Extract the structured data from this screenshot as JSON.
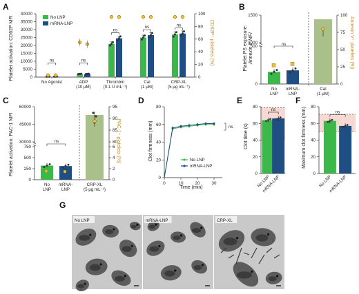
{
  "colors": {
    "green": "#3cb84a",
    "blue": "#1f4e82",
    "sage": "#a9c08a",
    "yellow": "#f0c030",
    "orange": "#c8902a",
    "pink": "#f6d9d2"
  },
  "panels": {
    "A": {
      "label": "A",
      "legend": [
        "No LNP",
        "mRNA-LNP"
      ],
      "ylabel": "Platelet activation: CD62P MFI",
      "y2label": "CD62P⁺ platelets (%)",
      "yticks": [
        "0",
        "5000",
        "10000",
        "15000",
        "20000",
        "25000",
        "30000",
        "35000",
        "40000"
      ],
      "y2ticks": [
        "0",
        "20",
        "40",
        "60",
        "80",
        "100"
      ],
      "groups": [
        "No Agonist",
        "ADP",
        "Thrombin",
        "Cal",
        "CRP-XL"
      ],
      "groups2": [
        "",
        "(10 μM)",
        "(0.1 U mL⁻¹)",
        "(1 μM)",
        "(5 μg mL⁻¹)"
      ],
      "sig": [
        "ns",
        "ns",
        "ns",
        "ns",
        "ns"
      ]
    },
    "B": {
      "label": "B",
      "ylabel1": "Platelet PS exposure:",
      "ylabel2": "Annexin V MFI",
      "y2label": "Annexin V⁺ platelets (%)",
      "yticks": [
        "0",
        "500",
        "1000",
        "1500"
      ],
      "y2ticks": [
        "0",
        "25",
        "50",
        "75",
        "100"
      ],
      "cats": [
        "No",
        "mRNA-",
        "Cal"
      ],
      "cats2": [
        "LNP",
        "LNP",
        "(1 μM)"
      ],
      "sig": "ns"
    },
    "C": {
      "label": "C",
      "ylabel": "Platelet activation: PAC-1 MFI",
      "y2label": "PAC-1⁺ platelets (%)",
      "yticks": [
        "0",
        "250",
        "500",
        "750",
        "30000",
        "45000",
        "60000"
      ],
      "y2ticks": [
        "0",
        "2",
        "4",
        "6",
        "80",
        "85",
        "90",
        "95"
      ],
      "cats": [
        "No",
        "mRNA-",
        "CRP-XL"
      ],
      "cats2": [
        "LNP",
        "LNP",
        "(5 μg mL⁻¹)"
      ],
      "sig": "ns"
    },
    "D": {
      "label": "D",
      "ylabel": "Clot firmness (mm)",
      "xlabel": "Time (min)",
      "yticks": [
        "0",
        "20",
        "40",
        "60",
        "80"
      ],
      "xticks": [
        "0",
        "10",
        "20",
        "30"
      ],
      "legend": [
        "No LNP",
        "mRNA-LNP"
      ],
      "sig": "ns"
    },
    "E": {
      "label": "E",
      "ylabel": "Clot time (s)",
      "yticks": [
        "0",
        "20",
        "40",
        "60",
        "80"
      ],
      "cats": [
        "No LNP",
        "mRNA-LNP"
      ],
      "sig": "ns"
    },
    "F": {
      "label": "F",
      "ylabel": "Maximum clot firmness (mm)",
      "yticks": [
        "0",
        "20",
        "40",
        "60",
        "80"
      ],
      "cats": [
        "No LNP",
        "mRNA-LNP"
      ],
      "sig": "ns"
    },
    "G": {
      "label": "G",
      "images": [
        "No LNP",
        "mRNA-LNP",
        "CRP-XL"
      ]
    }
  },
  "chart_data": [
    {
      "panel": "A",
      "type": "bar",
      "categories": [
        "No Agonist",
        "ADP (10 μM)",
        "Thrombin (0.1 U mL⁻¹)",
        "Cal (1 μM)",
        "CRP-XL (5 μg mL⁻¹)"
      ],
      "series": [
        {
          "name": "No LNP",
          "values": [
            300,
            2000,
            21000,
            25000,
            27000
          ]
        },
        {
          "name": "mRNA-LNP",
          "values": [
            300,
            2000,
            24500,
            26500,
            27500
          ]
        }
      ],
      "y2_percent_points": {
        "No LNP": [
          3,
          55,
          95,
          95,
          95
        ],
        "mRNA-LNP": [
          3,
          52,
          95,
          95,
          95
        ]
      },
      "ylim": [
        0,
        40000
      ],
      "y2lim": [
        0,
        100
      ]
    },
    {
      "panel": "B",
      "type": "bar",
      "categories": [
        "No LNP",
        "mRNA-LNP",
        "Cal (1 μM)"
      ],
      "values": [
        160,
        180,
        null
      ],
      "y2_percent": [
        null,
        null,
        75
      ],
      "ylim": [
        0,
        1500
      ],
      "y2lim": [
        0,
        100
      ]
    },
    {
      "panel": "C",
      "type": "bar",
      "categories": [
        "No LNP",
        "mRNA-LNP",
        "CRP-XL (5 μg mL⁻¹)"
      ],
      "values": [
        320,
        310,
        null
      ],
      "y2_percent": [
        null,
        null,
        90
      ],
      "ylim": [
        0,
        60000
      ],
      "y2lim": [
        0,
        95
      ]
    },
    {
      "panel": "D",
      "type": "line",
      "x": [
        0,
        5,
        10,
        15,
        20,
        25,
        30
      ],
      "series": [
        {
          "name": "No LNP",
          "values": [
            0,
            55,
            57,
            58,
            59,
            60,
            60
          ]
        },
        {
          "name": "mRNA-LNP",
          "values": [
            0,
            56,
            58,
            59,
            60,
            61,
            61
          ]
        }
      ],
      "xlim": [
        0,
        35
      ],
      "ylim": [
        0,
        80
      ]
    },
    {
      "panel": "E",
      "type": "bar",
      "categories": [
        "No LNP",
        "mRNA-LNP"
      ],
      "values": [
        64,
        66
      ],
      "ylim": [
        0,
        80
      ]
    },
    {
      "panel": "F",
      "type": "bar",
      "categories": [
        "No LNP",
        "mRNA-LNP"
      ],
      "values": [
        63,
        57
      ],
      "ylim": [
        0,
        80
      ]
    }
  ]
}
